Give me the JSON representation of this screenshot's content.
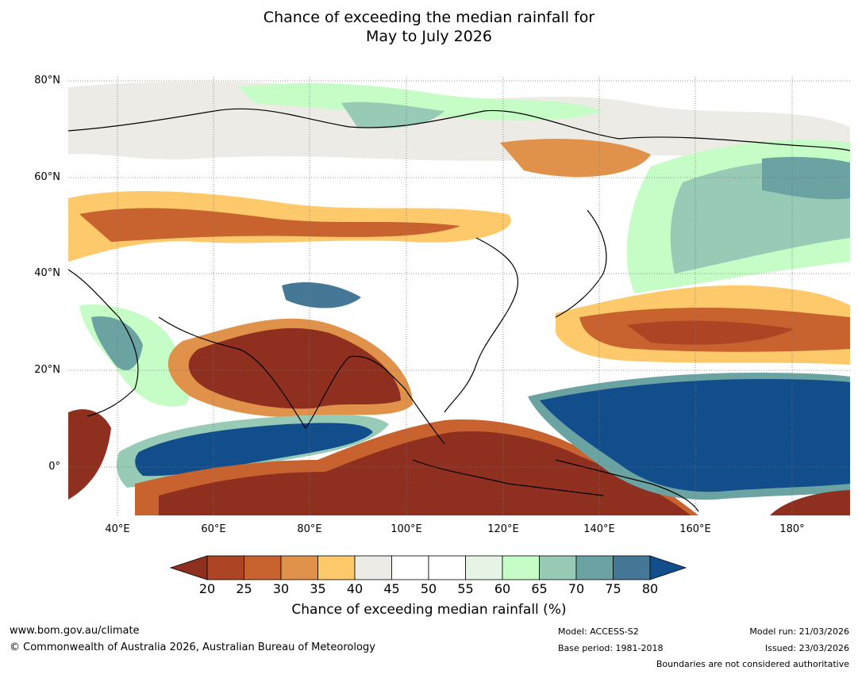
{
  "title": {
    "line1": "Chance of exceeding the median rainfall for",
    "line2": "May to July 2026"
  },
  "map": {
    "lat_labels": [
      "80°N",
      "60°N",
      "40°N",
      "20°N",
      "0°"
    ],
    "lon_labels": [
      "40°E",
      "60°E",
      "80°E",
      "100°E",
      "120°E",
      "140°E",
      "160°E",
      "180°"
    ]
  },
  "colorbar": {
    "ticks": [
      "20",
      "25",
      "30",
      "35",
      "40",
      "45",
      "50",
      "55",
      "60",
      "65",
      "70",
      "75",
      "80"
    ],
    "colors": [
      "#8e2f1f",
      "#ad4424",
      "#c8622e",
      "#e0924a",
      "#fec96b",
      "#edebe6",
      "#ffffff",
      "#ffffff",
      "#e6f4e6",
      "#c6fcc6",
      "#97cbb5",
      "#6ba3a3",
      "#447896",
      "#134e8c"
    ],
    "label": "Chance of exceeding median rainfall (%)"
  },
  "footer": {
    "url": "www.bom.gov.au/climate",
    "copyright": "© Commonwealth of Australia 2026, Australian Bureau of Meteorology",
    "model": "Model: ACCESS-S2",
    "base_period": "Base period: 1981-2018",
    "model_run": "Model run: 21/03/2026",
    "issued": "Issued: 23/03/2026",
    "disclaimer": "Boundaries are not considered authoritative"
  }
}
